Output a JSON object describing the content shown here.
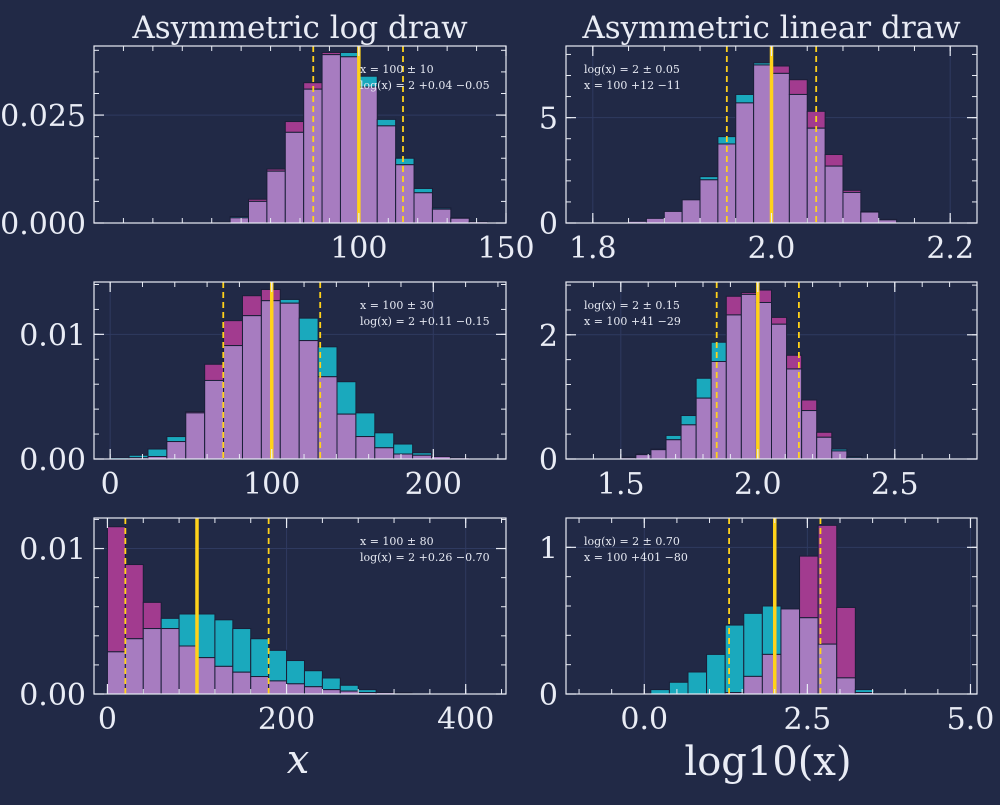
{
  "colors": {
    "background": "#212946",
    "frame": "#e9ecf5",
    "grid": "#2f3a60",
    "teal": "#1aa9bd",
    "magenta": "#a23b8f",
    "overlap": "#a77cc0",
    "bar_edge": "#1a1f38",
    "median_line": "#ffd21a",
    "quantile_line": "#ffd21a"
  },
  "chart_data": [
    {
      "type": "bar",
      "id": "p0",
      "title": "Asymmetric log draw",
      "annotation": [
        "x = 100 ± 10",
        "log(x) = 2 +0.04 −0.05"
      ],
      "xlim": [
        10,
        150
      ],
      "ylim": [
        0,
        0.041
      ],
      "xticks": [
        100,
        150
      ],
      "xtick_labels": [
        "100",
        "150"
      ],
      "yticks": [
        0,
        0.025
      ],
      "ytick_labels": [
        "0.000",
        "0.025"
      ],
      "bin_start": 50,
      "bin_width": 6.25,
      "series": [
        {
          "name": "linear",
          "values": [
            0.0002,
            0.0015,
            0.005,
            0.012,
            0.021,
            0.031,
            0.039,
            0.0395,
            0.034,
            0.024,
            0.015,
            0.008,
            0.0035,
            0.0012,
            0.0003,
            0.0001
          ]
        },
        {
          "name": "log",
          "values": [
            0.0001,
            0.0012,
            0.0055,
            0.0125,
            0.0235,
            0.0325,
            0.0395,
            0.0385,
            0.0315,
            0.0225,
            0.0135,
            0.007,
            0.0032,
            0.0011,
            0.0003,
            0.0001
          ]
        }
      ],
      "median": 100,
      "quantiles": [
        84.5,
        115
      ]
    },
    {
      "type": "bar",
      "id": "p1",
      "title": "Asymmetric linear draw",
      "annotation": [
        "log(x) = 2 ± 0.05",
        "x = 100 +12 −11"
      ],
      "xlim": [
        1.77,
        2.23
      ],
      "ylim": [
        0,
        8.4
      ],
      "xticks": [
        1.8,
        2.0,
        2.2
      ],
      "xtick_labels": [
        "1.8",
        "2.0",
        "2.2"
      ],
      "yticks": [
        0,
        5
      ],
      "ytick_labels": [
        "0",
        "5"
      ],
      "bin_start": 1.82,
      "bin_width": 0.02,
      "series": [
        {
          "name": "linear",
          "values": [
            0.02,
            0.08,
            0.22,
            0.55,
            1.1,
            2.2,
            4.1,
            6.1,
            7.6,
            7.1,
            6.1,
            4.5,
            2.7,
            1.45,
            0.52,
            0.17
          ]
        },
        {
          "name": "log",
          "values": [
            0.02,
            0.08,
            0.22,
            0.55,
            1.1,
            2.05,
            3.75,
            5.7,
            7.5,
            7.45,
            6.8,
            5.3,
            3.25,
            1.55,
            0.55,
            0.15
          ]
        }
      ],
      "median": 2.0,
      "quantiles": [
        1.95,
        2.05
      ]
    },
    {
      "type": "bar",
      "id": "p2",
      "title": "",
      "annotation": [
        "x = 100 ± 30",
        "log(x) = 2 +0.11 −0.15"
      ],
      "xlim": [
        -10,
        245
      ],
      "ylim": [
        0,
        0.0142
      ],
      "xticks": [
        0,
        100,
        200
      ],
      "xtick_labels": [
        "0",
        "100",
        "200"
      ],
      "yticks": [
        0,
        0.01
      ],
      "ytick_labels": [
        "0.00",
        "0.01"
      ],
      "bin_start": 0,
      "bin_width": 11.7,
      "series": [
        {
          "name": "linear",
          "values": [
            0.0001,
            0.0003,
            0.0008,
            0.0018,
            0.0037,
            0.0063,
            0.0091,
            0.0115,
            0.0127,
            0.0128,
            0.0113,
            0.009,
            0.0062,
            0.0037,
            0.0021,
            0.0012,
            0.0005,
            0.0002,
            0.0001
          ]
        },
        {
          "name": "log",
          "values": [
            0,
            0.0001,
            0.0002,
            0.0014,
            0.0038,
            0.0076,
            0.0111,
            0.0131,
            0.0136,
            0.0125,
            0.0095,
            0.0066,
            0.0036,
            0.0018,
            0.0009,
            0.0004,
            0.0003,
            0.0002,
            0.0001
          ]
        }
      ],
      "median": 100,
      "quantiles": [
        70,
        130
      ]
    },
    {
      "type": "bar",
      "id": "p3",
      "title": "",
      "annotation": [
        "log(x) = 2 ± 0.15",
        "x = 100 +41 −29"
      ],
      "xlim": [
        1.3,
        2.8
      ],
      "ylim": [
        0,
        2.85
      ],
      "xticks": [
        1.5,
        2.0,
        2.5
      ],
      "xtick_labels": [
        "1.5",
        "2.0",
        "2.5"
      ],
      "yticks": [
        0,
        2
      ],
      "ytick_labels": [
        "0",
        "2"
      ],
      "bin_start": 1.5,
      "bin_width": 0.055,
      "series": [
        {
          "name": "linear",
          "values": [
            0.02,
            0.07,
            0.15,
            0.38,
            0.7,
            1.3,
            1.88,
            2.32,
            2.65,
            2.52,
            2.17,
            1.45,
            0.78,
            0.35,
            0.16,
            0.04
          ]
        },
        {
          "name": "log",
          "values": [
            0.03,
            0.08,
            0.16,
            0.31,
            0.55,
            0.98,
            1.57,
            2.62,
            2.68,
            2.72,
            2.28,
            1.67,
            0.95,
            0.43,
            0.13,
            0.02
          ]
        }
      ],
      "median": 2.0,
      "quantiles": [
        1.85,
        2.15
      ]
    },
    {
      "type": "bar",
      "id": "p4",
      "title": "",
      "annotation": [
        "x = 100 ± 80",
        "log(x) = 2 +0.26 −0.70"
      ],
      "xlim": [
        -15,
        445
      ],
      "ylim": [
        0,
        0.0121
      ],
      "xticks": [
        0,
        200,
        400
      ],
      "xtick_labels": [
        "0",
        "200",
        "400"
      ],
      "yticks": [
        0,
        0.01
      ],
      "ytick_labels": [
        "0.00",
        "0.01"
      ],
      "bin_start": 0,
      "bin_width": 20,
      "series": [
        {
          "name": "linear",
          "values": [
            0.0029,
            0.0038,
            0.0045,
            0.0052,
            0.0055,
            0.0055,
            0.0051,
            0.0045,
            0.0038,
            0.003,
            0.0023,
            0.0016,
            0.0011,
            0.0006,
            0.0003,
            0.0001,
            0.0001
          ]
        },
        {
          "name": "log",
          "values": [
            0.0115,
            0.0089,
            0.0063,
            0.0045,
            0.0033,
            0.0025,
            0.0019,
            0.0015,
            0.0012,
            0.0009,
            0.0007,
            0.0005,
            0.0003,
            0.0002,
            0.0001,
            0.0001,
            5e-05
          ]
        }
      ],
      "median": 100,
      "quantiles": [
        20,
        180
      ]
    },
    {
      "type": "bar",
      "id": "p5",
      "title": "",
      "annotation": [
        "log(x) = 2 ± 0.70",
        "x = 100 +401 −80"
      ],
      "xlim": [
        -1.2,
        5.1
      ],
      "ylim": [
        0,
        1.2
      ],
      "xticks": [
        0.0,
        2.5,
        5.0
      ],
      "xtick_labels": [
        "0.0",
        "2.5",
        "5.0"
      ],
      "yticks": [
        0,
        1
      ],
      "ytick_labels": [
        "0",
        "1"
      ],
      "bin_start": 0.1,
      "bin_width": 0.285,
      "series": [
        {
          "name": "linear",
          "values": [
            0.03,
            0.08,
            0.15,
            0.27,
            0.47,
            0.55,
            0.6,
            0.58,
            0.52,
            0.34,
            0.11,
            0.03,
            0.0,
            0.0
          ]
        },
        {
          "name": "log",
          "values": [
            0,
            0,
            0,
            0,
            0.01,
            0.12,
            0.27,
            0.58,
            0.94,
            1.15,
            0.59,
            0.01,
            0.0,
            0.0
          ]
        }
      ],
      "median": 2.0,
      "quantiles": [
        1.3,
        2.7
      ]
    }
  ],
  "xlabels": [
    "x",
    "log10(x)"
  ]
}
